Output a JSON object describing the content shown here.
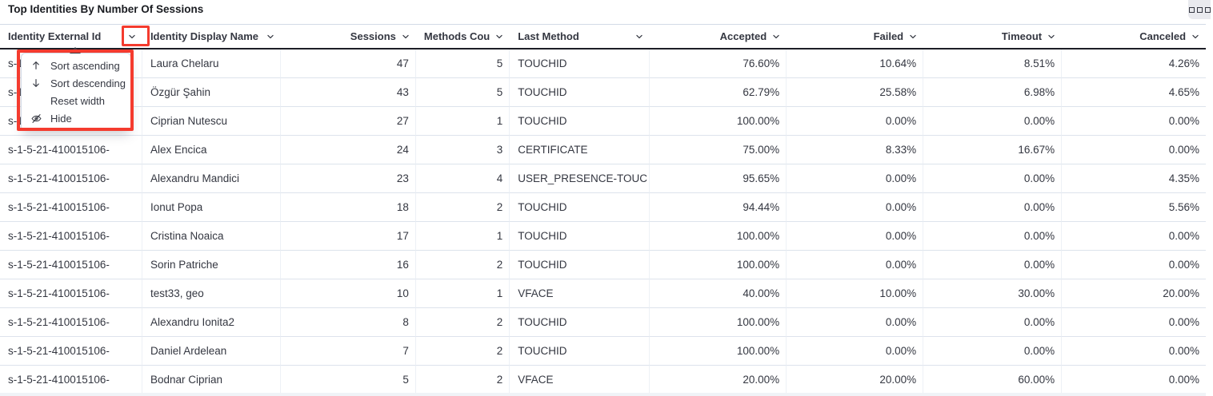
{
  "panel": {
    "title": "Top Identities By Number Of Sessions",
    "options_icon": "boxes-horizontal-icon"
  },
  "table": {
    "columns": [
      {
        "id": "identity-external-id",
        "label": "Identity External Id",
        "align": "left"
      },
      {
        "id": "identity-display-name",
        "label": "Identity Display Name",
        "align": "left"
      },
      {
        "id": "sessions",
        "label": "Sessions",
        "align": "right"
      },
      {
        "id": "methods-count",
        "label": "Methods Count",
        "align": "right"
      },
      {
        "id": "last-method",
        "label": "Last Method",
        "align": "left"
      },
      {
        "id": "accepted",
        "label": "Accepted",
        "align": "right"
      },
      {
        "id": "failed",
        "label": "Failed",
        "align": "right"
      },
      {
        "id": "timeout",
        "label": "Timeout",
        "align": "right"
      },
      {
        "id": "canceled",
        "label": "Canceled",
        "align": "right"
      }
    ],
    "rows": [
      [
        "s-1-5-21-410015106-",
        "Laura Chelaru",
        "47",
        "5",
        "TOUCHID",
        "76.60%",
        "10.64%",
        "8.51%",
        "4.26%"
      ],
      [
        "s-1-5-21-410015106-",
        "Özgür Şahin",
        "43",
        "5",
        "TOUCHID",
        "62.79%",
        "25.58%",
        "6.98%",
        "4.65%"
      ],
      [
        "s-1-5-21-410015106-",
        "Ciprian Nutescu",
        "27",
        "1",
        "TOUCHID",
        "100.00%",
        "0.00%",
        "0.00%",
        "0.00%"
      ],
      [
        "s-1-5-21-410015106-",
        "Alex Encica",
        "24",
        "3",
        "CERTIFICATE",
        "75.00%",
        "8.33%",
        "16.67%",
        "0.00%"
      ],
      [
        "s-1-5-21-410015106-",
        "Alexandru Mandici",
        "23",
        "4",
        "USER_PRESENCE-TOUC",
        "95.65%",
        "0.00%",
        "0.00%",
        "4.35%"
      ],
      [
        "s-1-5-21-410015106-",
        "Ionut Popa",
        "18",
        "2",
        "TOUCHID",
        "94.44%",
        "0.00%",
        "0.00%",
        "5.56%"
      ],
      [
        "s-1-5-21-410015106-",
        "Cristina Noaica",
        "17",
        "1",
        "TOUCHID",
        "100.00%",
        "0.00%",
        "0.00%",
        "0.00%"
      ],
      [
        "s-1-5-21-410015106-",
        "Sorin Patriche",
        "16",
        "2",
        "TOUCHID",
        "100.00%",
        "0.00%",
        "0.00%",
        "0.00%"
      ],
      [
        "s-1-5-21-410015106-",
        "test33, geo",
        "10",
        "1",
        "VFACE",
        "40.00%",
        "10.00%",
        "30.00%",
        "20.00%"
      ],
      [
        "s-1-5-21-410015106-",
        "Alexandru Ionita2",
        "8",
        "2",
        "TOUCHID",
        "100.00%",
        "0.00%",
        "0.00%",
        "0.00%"
      ],
      [
        "s-1-5-21-410015106-",
        "Daniel Ardelean",
        "7",
        "2",
        "TOUCHID",
        "100.00%",
        "0.00%",
        "0.00%",
        "0.00%"
      ],
      [
        "s-1-5-21-410015106-",
        "Bodnar Ciprian",
        "5",
        "2",
        "VFACE",
        "20.00%",
        "20.00%",
        "60.00%",
        "0.00%"
      ]
    ]
  },
  "column_menu": {
    "for_column": "Identity External Id",
    "items": [
      {
        "icon": "sort-ascending-icon",
        "label": "Sort ascending"
      },
      {
        "icon": "sort-descending-icon",
        "label": "Sort descending"
      },
      {
        "icon": null,
        "label": "Reset width"
      },
      {
        "icon": "hide-eye-slash-icon",
        "label": "Hide"
      }
    ]
  },
  "annotations": {
    "highlight_color": "#f43b2e",
    "boxes": [
      "column-actions-button-highlight",
      "column-actions-menu-highlight"
    ]
  },
  "colors": {
    "header_border": "#1d1e26",
    "row_divider": "#dde3ec",
    "text": "#343741",
    "title_text": "#1a1c21"
  }
}
